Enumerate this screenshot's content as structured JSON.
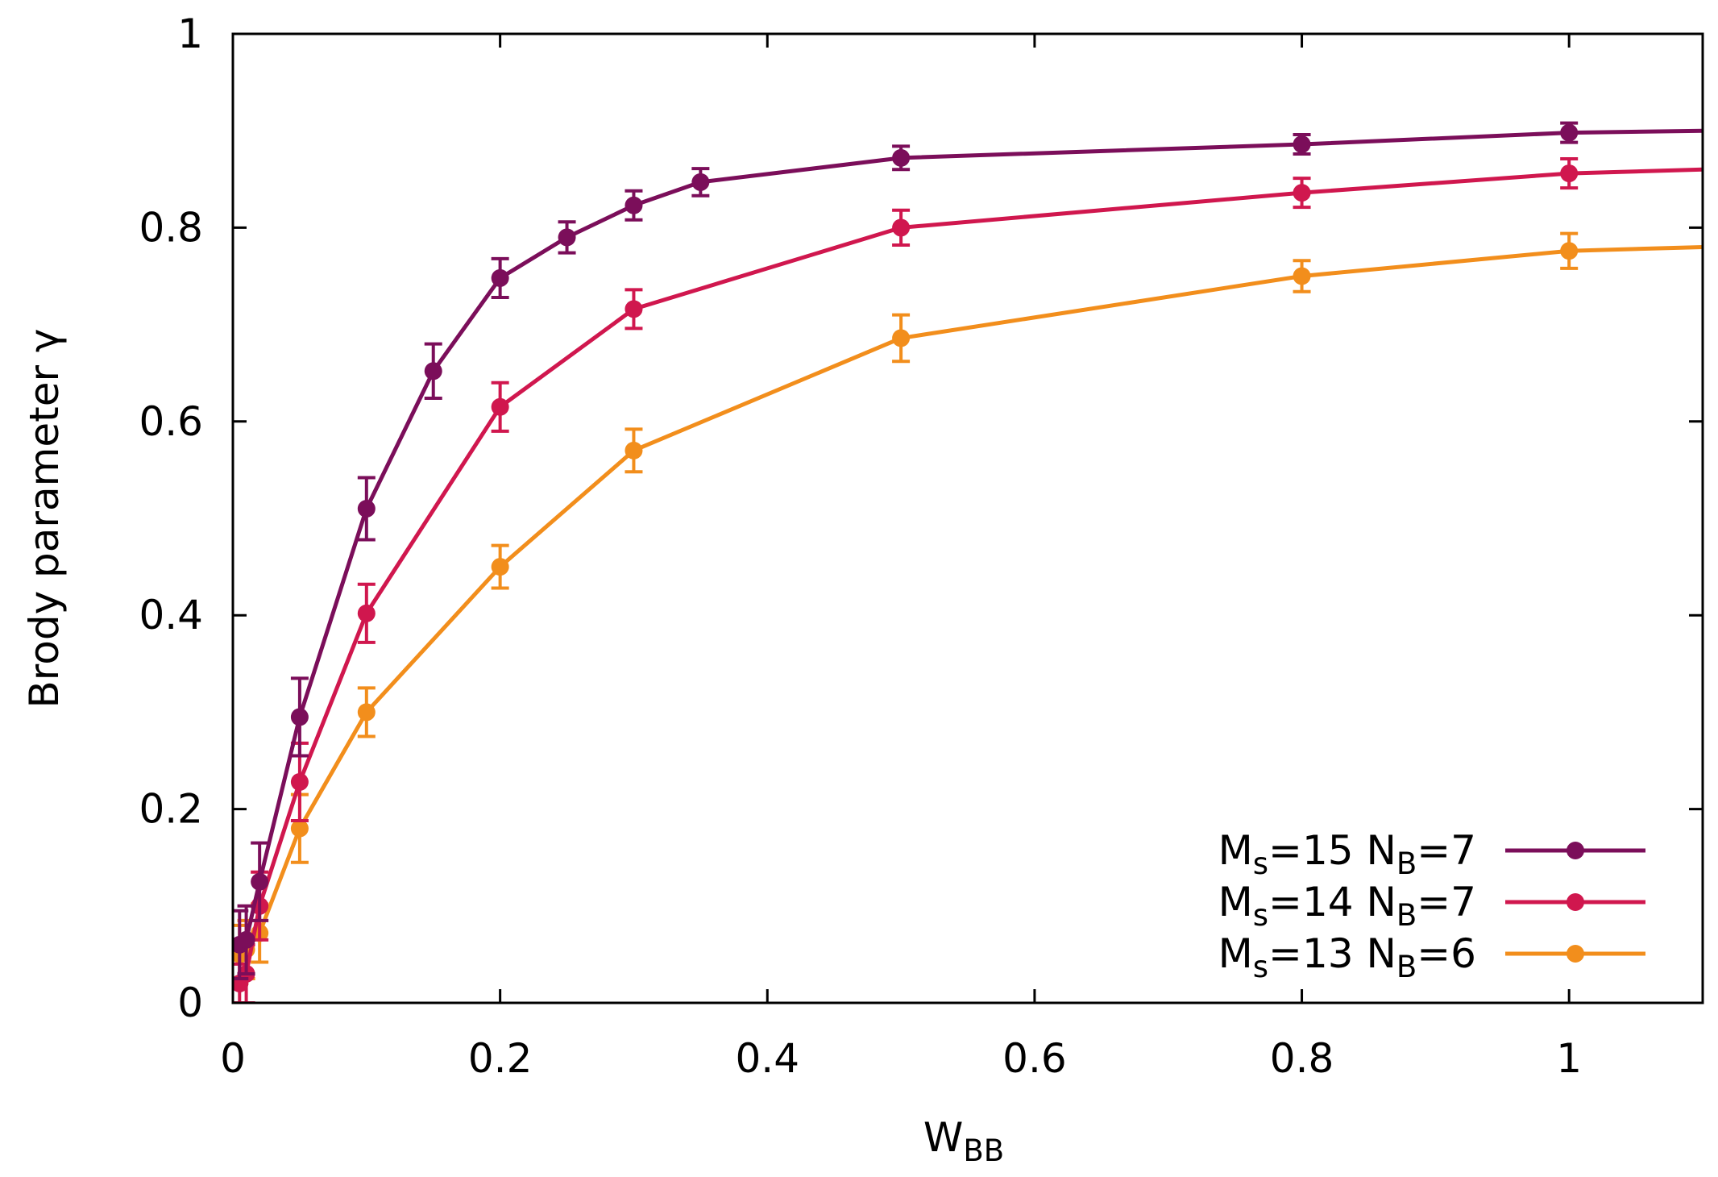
{
  "chart_data": {
    "type": "line",
    "title": "",
    "xlabel": {
      "main": "W",
      "sub": "BB"
    },
    "ylabel": "Brody parameter γ",
    "xlim": [
      0,
      1.1
    ],
    "ylim": [
      0,
      1
    ],
    "xticks": [
      {
        "value": 0,
        "label": "0"
      },
      {
        "value": 0.2,
        "label": "0.2"
      },
      {
        "value": 0.4,
        "label": "0.4"
      },
      {
        "value": 0.6,
        "label": "0.6"
      },
      {
        "value": 0.8,
        "label": "0.8"
      },
      {
        "value": 1,
        "label": "1"
      }
    ],
    "yticks": [
      {
        "value": 0,
        "label": "0"
      },
      {
        "value": 0.2,
        "label": "0.2"
      },
      {
        "value": 0.4,
        "label": "0.4"
      },
      {
        "value": 0.6,
        "label": "0.6"
      },
      {
        "value": 0.8,
        "label": "0.8"
      },
      {
        "value": 1,
        "label": "1"
      }
    ],
    "grid": false,
    "legend_position": "bottom-right",
    "series": [
      {
        "name": "M_s=15 N_B=7",
        "legend": {
          "m": "M",
          "msub": "s",
          "mval": "=15",
          "n": "N",
          "nsub": "B",
          "nval": "=7"
        },
        "color": "#7b0e5a",
        "x": [
          0.005,
          0.01,
          0.02,
          0.05,
          0.1,
          0.15,
          0.2,
          0.25,
          0.3,
          0.35,
          0.5,
          0.8,
          1.0,
          1.1
        ],
        "y": [
          0.06,
          0.065,
          0.125,
          0.295,
          0.51,
          0.652,
          0.748,
          0.79,
          0.823,
          0.847,
          0.872,
          0.886,
          0.898,
          0.9
        ],
        "err": [
          0.035,
          0.035,
          0.04,
          0.04,
          0.032,
          0.028,
          0.02,
          0.016,
          0.015,
          0.014,
          0.012,
          0.01,
          0.01,
          null
        ]
      },
      {
        "name": "M_s=14 N_B=7",
        "legend": {
          "m": "M",
          "msub": "s",
          "mval": "=14",
          "n": "N",
          "nsub": "B",
          "nval": "=7"
        },
        "color": "#d0174e",
        "x": [
          0.005,
          0.01,
          0.02,
          0.05,
          0.1,
          0.2,
          0.3,
          0.5,
          0.8,
          1.0,
          1.1
        ],
        "y": [
          0.02,
          0.03,
          0.1,
          0.228,
          0.402,
          0.615,
          0.716,
          0.8,
          0.836,
          0.856,
          0.86
        ],
        "err": [
          0.02,
          0.03,
          0.035,
          0.04,
          0.03,
          0.025,
          0.02,
          0.018,
          0.015,
          0.015,
          null
        ]
      },
      {
        "name": "M_s=13 N_B=6",
        "legend": {
          "m": "M",
          "msub": "s",
          "mval": "=13",
          "n": "N",
          "nsub": "B",
          "nval": "=6"
        },
        "color": "#f28e1c",
        "x": [
          0.005,
          0.01,
          0.02,
          0.05,
          0.1,
          0.2,
          0.3,
          0.5,
          0.8,
          1.0,
          1.1
        ],
        "y": [
          0.05,
          0.055,
          0.072,
          0.18,
          0.3,
          0.45,
          0.57,
          0.686,
          0.75,
          0.776,
          0.78
        ],
        "err": [
          0.03,
          0.03,
          0.03,
          0.035,
          0.025,
          0.022,
          0.022,
          0.024,
          0.016,
          0.018,
          null
        ]
      }
    ]
  }
}
